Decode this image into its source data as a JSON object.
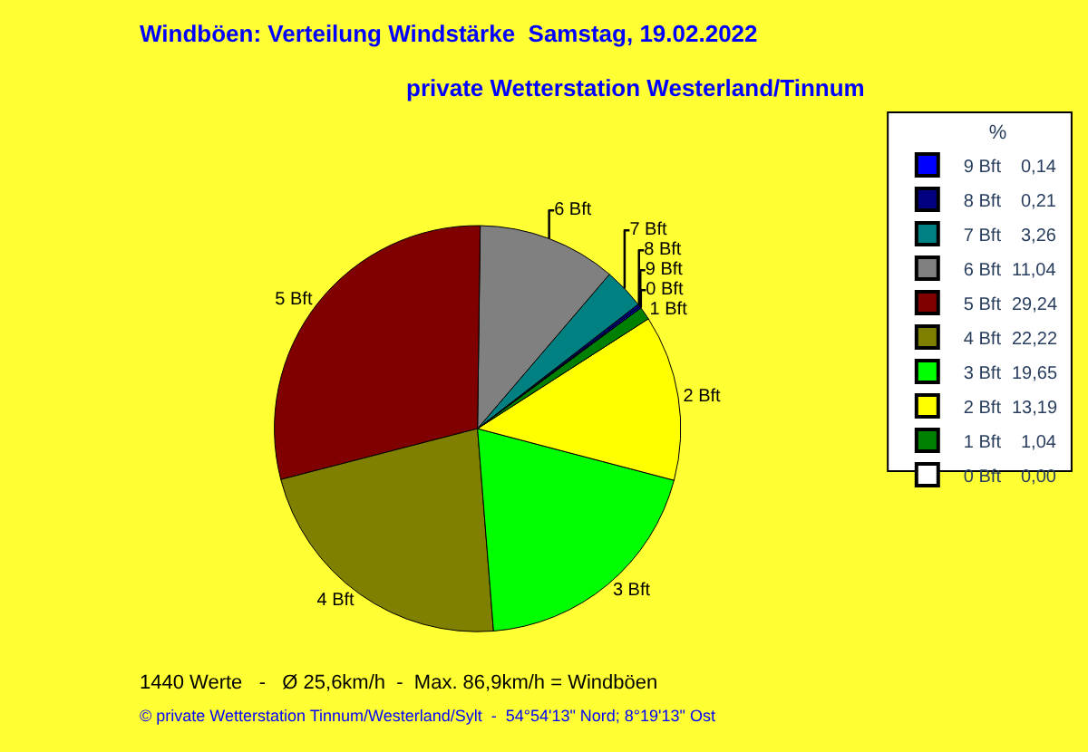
{
  "chart_data": {
    "type": "pie",
    "title": "Windböen: Verteilung Windstärke  Samstag, 19.02.2022",
    "subtitle": "private Wetterstation Westerland/Tinnum",
    "legend_title": "%",
    "categories": [
      "9 Bft",
      "8 Bft",
      "7 Bft",
      "6 Bft",
      "5 Bft",
      "4 Bft",
      "3 Bft",
      "2 Bft",
      "1 Bft",
      "0 Bft"
    ],
    "values": [
      0.14,
      0.21,
      3.26,
      11.04,
      29.24,
      22.22,
      19.65,
      13.19,
      1.04,
      0.0
    ],
    "value_labels": [
      "0,14",
      "0,21",
      "3,26",
      "11,04",
      "29,24",
      "22,22",
      "19,65",
      "13,19",
      "1,04",
      "0,00"
    ],
    "colors": [
      "#0000ff",
      "#000080",
      "#008080",
      "#808080",
      "#800000",
      "#808000",
      "#00ff00",
      "#ffff00",
      "#008000",
      "#ffffff"
    ],
    "legend": "right",
    "annotations": [
      "1440 Werte   -   Ø 25,6km/h  -  Max. 86,9km/h = Windböen",
      "© private Wetterstation Tinnum/Westerland/Sylt  -  54°54'13\" Nord; 8°19'13\" Ost"
    ]
  }
}
